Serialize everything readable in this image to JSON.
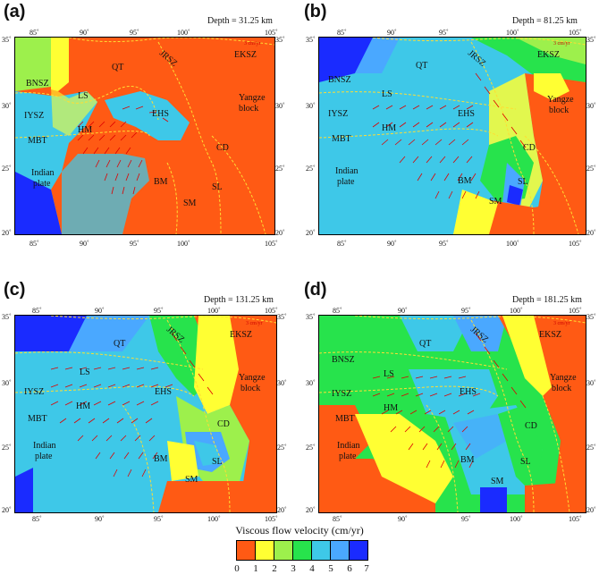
{
  "panels": [
    {
      "label": "(a)",
      "depth": "Depth = 31.25 km"
    },
    {
      "label": "(b)",
      "depth": "Depth = 81.25 km"
    },
    {
      "label": "(c)",
      "depth": "Depth = 131.25 km"
    },
    {
      "label": "(d)",
      "depth": "Depth = 181.25 km"
    }
  ],
  "axes": {
    "x_ticks": [
      "85˚",
      "90˚",
      "95˚",
      "100˚",
      "105˚"
    ],
    "y_ticks": [
      "35˚",
      "30˚",
      "25˚",
      "20˚"
    ]
  },
  "regions": {
    "qt": "QT",
    "jrsz": "JRSZ",
    "eksz": "EKSZ",
    "bnsz": "BNSZ",
    "ls": "LS",
    "yangze1": "Yangze",
    "yangze2": "block",
    "iysz": "IYSZ",
    "ehs": "EHS",
    "hm": "HM",
    "mbt": "MBT",
    "cd": "CD",
    "bm": "BM",
    "sl": "SL",
    "sm": "SM",
    "indian1": "Indian",
    "indian2": "plate"
  },
  "scale_label": "3 cm/yr",
  "colorbar": {
    "title": "Viscous flow velocity (cm/yr)",
    "labels": [
      "0",
      "1",
      "2",
      "3",
      "4",
      "5",
      "6",
      "7"
    ],
    "colors": [
      "#ff5a14",
      "#ffff33",
      "#9df04c",
      "#27e34c",
      "#3ec8e8",
      "#4aa8ff",
      "#1a2bff",
      "#9a22ff"
    ]
  }
}
